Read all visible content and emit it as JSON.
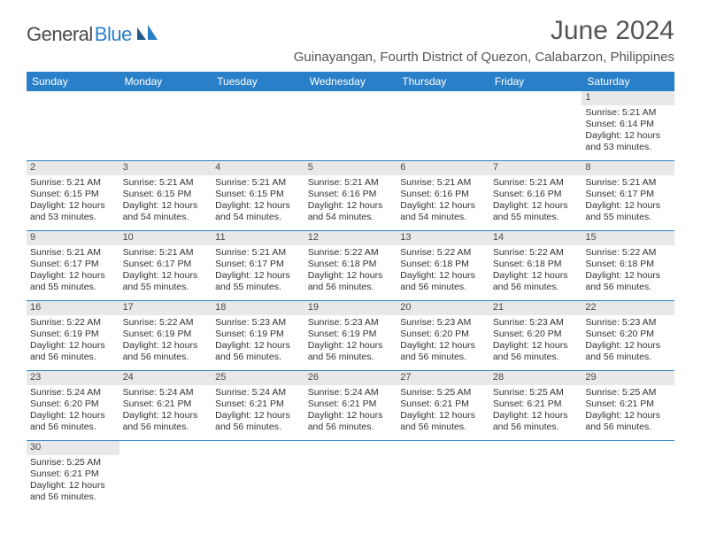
{
  "logo": {
    "general": "General",
    "blue": "Blue"
  },
  "title": "June 2024",
  "location": "Guinayangan, Fourth District of Quezon, Calabarzon, Philippines",
  "colors": {
    "header_bg": "#2a7fc9",
    "header_text": "#ffffff",
    "daynum_bg": "#e8e8e8",
    "row_border": "#2a7fc9",
    "body_text": "#333333"
  },
  "day_headers": [
    "Sunday",
    "Monday",
    "Tuesday",
    "Wednesday",
    "Thursday",
    "Friday",
    "Saturday"
  ],
  "leading_blanks": 6,
  "days": [
    {
      "n": "1",
      "sunrise": "Sunrise: 5:21 AM",
      "sunset": "Sunset: 6:14 PM",
      "daylight": "Daylight: 12 hours and 53 minutes."
    },
    {
      "n": "2",
      "sunrise": "Sunrise: 5:21 AM",
      "sunset": "Sunset: 6:15 PM",
      "daylight": "Daylight: 12 hours and 53 minutes."
    },
    {
      "n": "3",
      "sunrise": "Sunrise: 5:21 AM",
      "sunset": "Sunset: 6:15 PM",
      "daylight": "Daylight: 12 hours and 54 minutes."
    },
    {
      "n": "4",
      "sunrise": "Sunrise: 5:21 AM",
      "sunset": "Sunset: 6:15 PM",
      "daylight": "Daylight: 12 hours and 54 minutes."
    },
    {
      "n": "5",
      "sunrise": "Sunrise: 5:21 AM",
      "sunset": "Sunset: 6:16 PM",
      "daylight": "Daylight: 12 hours and 54 minutes."
    },
    {
      "n": "6",
      "sunrise": "Sunrise: 5:21 AM",
      "sunset": "Sunset: 6:16 PM",
      "daylight": "Daylight: 12 hours and 54 minutes."
    },
    {
      "n": "7",
      "sunrise": "Sunrise: 5:21 AM",
      "sunset": "Sunset: 6:16 PM",
      "daylight": "Daylight: 12 hours and 55 minutes."
    },
    {
      "n": "8",
      "sunrise": "Sunrise: 5:21 AM",
      "sunset": "Sunset: 6:17 PM",
      "daylight": "Daylight: 12 hours and 55 minutes."
    },
    {
      "n": "9",
      "sunrise": "Sunrise: 5:21 AM",
      "sunset": "Sunset: 6:17 PM",
      "daylight": "Daylight: 12 hours and 55 minutes."
    },
    {
      "n": "10",
      "sunrise": "Sunrise: 5:21 AM",
      "sunset": "Sunset: 6:17 PM",
      "daylight": "Daylight: 12 hours and 55 minutes."
    },
    {
      "n": "11",
      "sunrise": "Sunrise: 5:21 AM",
      "sunset": "Sunset: 6:17 PM",
      "daylight": "Daylight: 12 hours and 55 minutes."
    },
    {
      "n": "12",
      "sunrise": "Sunrise: 5:22 AM",
      "sunset": "Sunset: 6:18 PM",
      "daylight": "Daylight: 12 hours and 56 minutes."
    },
    {
      "n": "13",
      "sunrise": "Sunrise: 5:22 AM",
      "sunset": "Sunset: 6:18 PM",
      "daylight": "Daylight: 12 hours and 56 minutes."
    },
    {
      "n": "14",
      "sunrise": "Sunrise: 5:22 AM",
      "sunset": "Sunset: 6:18 PM",
      "daylight": "Daylight: 12 hours and 56 minutes."
    },
    {
      "n": "15",
      "sunrise": "Sunrise: 5:22 AM",
      "sunset": "Sunset: 6:18 PM",
      "daylight": "Daylight: 12 hours and 56 minutes."
    },
    {
      "n": "16",
      "sunrise": "Sunrise: 5:22 AM",
      "sunset": "Sunset: 6:19 PM",
      "daylight": "Daylight: 12 hours and 56 minutes."
    },
    {
      "n": "17",
      "sunrise": "Sunrise: 5:22 AM",
      "sunset": "Sunset: 6:19 PM",
      "daylight": "Daylight: 12 hours and 56 minutes."
    },
    {
      "n": "18",
      "sunrise": "Sunrise: 5:23 AM",
      "sunset": "Sunset: 6:19 PM",
      "daylight": "Daylight: 12 hours and 56 minutes."
    },
    {
      "n": "19",
      "sunrise": "Sunrise: 5:23 AM",
      "sunset": "Sunset: 6:19 PM",
      "daylight": "Daylight: 12 hours and 56 minutes."
    },
    {
      "n": "20",
      "sunrise": "Sunrise: 5:23 AM",
      "sunset": "Sunset: 6:20 PM",
      "daylight": "Daylight: 12 hours and 56 minutes."
    },
    {
      "n": "21",
      "sunrise": "Sunrise: 5:23 AM",
      "sunset": "Sunset: 6:20 PM",
      "daylight": "Daylight: 12 hours and 56 minutes."
    },
    {
      "n": "22",
      "sunrise": "Sunrise: 5:23 AM",
      "sunset": "Sunset: 6:20 PM",
      "daylight": "Daylight: 12 hours and 56 minutes."
    },
    {
      "n": "23",
      "sunrise": "Sunrise: 5:24 AM",
      "sunset": "Sunset: 6:20 PM",
      "daylight": "Daylight: 12 hours and 56 minutes."
    },
    {
      "n": "24",
      "sunrise": "Sunrise: 5:24 AM",
      "sunset": "Sunset: 6:21 PM",
      "daylight": "Daylight: 12 hours and 56 minutes."
    },
    {
      "n": "25",
      "sunrise": "Sunrise: 5:24 AM",
      "sunset": "Sunset: 6:21 PM",
      "daylight": "Daylight: 12 hours and 56 minutes."
    },
    {
      "n": "26",
      "sunrise": "Sunrise: 5:24 AM",
      "sunset": "Sunset: 6:21 PM",
      "daylight": "Daylight: 12 hours and 56 minutes."
    },
    {
      "n": "27",
      "sunrise": "Sunrise: 5:25 AM",
      "sunset": "Sunset: 6:21 PM",
      "daylight": "Daylight: 12 hours and 56 minutes."
    },
    {
      "n": "28",
      "sunrise": "Sunrise: 5:25 AM",
      "sunset": "Sunset: 6:21 PM",
      "daylight": "Daylight: 12 hours and 56 minutes."
    },
    {
      "n": "29",
      "sunrise": "Sunrise: 5:25 AM",
      "sunset": "Sunset: 6:21 PM",
      "daylight": "Daylight: 12 hours and 56 minutes."
    },
    {
      "n": "30",
      "sunrise": "Sunrise: 5:25 AM",
      "sunset": "Sunset: 6:21 PM",
      "daylight": "Daylight: 12 hours and 56 minutes."
    }
  ]
}
